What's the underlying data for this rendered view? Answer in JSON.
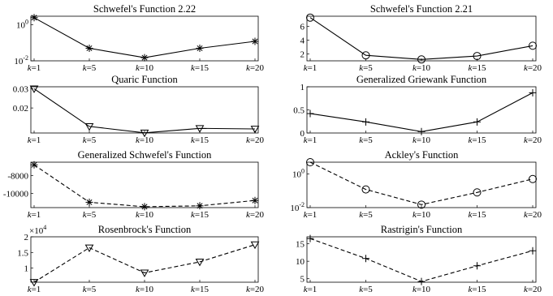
{
  "chart_data": [
    {
      "type": "line",
      "title": "Schwefel's Function 2.22",
      "categories": [
        "k=1",
        "k=5",
        "k=10",
        "k=15",
        "k=20"
      ],
      "values": [
        2.5,
        0.05,
        0.015,
        0.05,
        0.12
      ],
      "yscale": "log",
      "ylim": [
        0.01,
        3
      ],
      "yticks": [
        {
          "value": 1,
          "base": "10",
          "exp": "0"
        },
        {
          "value": 0.01,
          "base": "10",
          "exp": "-2"
        }
      ],
      "marker": "asterisk",
      "linestyle": "solid"
    },
    {
      "type": "line",
      "title": "Schwefel's Function 2.21",
      "categories": [
        "k=1",
        "k=5",
        "k=10",
        "k=15",
        "k=20"
      ],
      "values": [
        7.3,
        1.8,
        1.2,
        1.7,
        3.2
      ],
      "ylim": [
        1,
        7.5
      ],
      "yticks": [
        {
          "value": 2,
          "label": "2"
        },
        {
          "value": 4,
          "label": "4"
        },
        {
          "value": 6,
          "label": "6"
        }
      ],
      "marker": "circle",
      "linestyle": "solid"
    },
    {
      "type": "line",
      "title": "Quaric Function",
      "categories": [
        "k=1",
        "k=5",
        "k=10",
        "k=15",
        "k=20"
      ],
      "values": [
        0.03,
        0.0104,
        0.0071,
        0.0094,
        0.0091
      ],
      "ylim": [
        0.007,
        0.031
      ],
      "yticks": [
        {
          "value": 0.02,
          "label": "0.02"
        },
        {
          "value": 0.03,
          "label": "0.03"
        }
      ],
      "marker": "triangle-down",
      "linestyle": "solid"
    },
    {
      "type": "line",
      "title": "Generalized Griewank Function",
      "categories": [
        "k=1",
        "k=5",
        "k=10",
        "k=15",
        "k=20"
      ],
      "values": [
        0.42,
        0.24,
        0.03,
        0.24,
        0.87
      ],
      "ylim": [
        0,
        1
      ],
      "yticks": [
        {
          "value": 0,
          "label": "0"
        },
        {
          "value": 0.5,
          "label": "0.5"
        },
        {
          "value": 1,
          "label": "1"
        }
      ],
      "marker": "plus",
      "linestyle": "solid"
    },
    {
      "type": "line",
      "title": "Generalized Schwefel's Function",
      "categories": [
        "k=1",
        "k=5",
        "k=10",
        "k=15",
        "k=20"
      ],
      "values": [
        -6800,
        -11000,
        -11500,
        -11400,
        -10800
      ],
      "ylim": [
        -11600,
        -6500
      ],
      "yticks": [
        {
          "value": -8000,
          "label": "-8000"
        },
        {
          "value": -10000,
          "label": "-10000"
        }
      ],
      "marker": "asterisk",
      "linestyle": "dashed"
    },
    {
      "type": "line",
      "title": "Ackley's Function",
      "categories": [
        "k=1",
        "k=5",
        "k=10",
        "k=15",
        "k=20"
      ],
      "values": [
        5,
        0.12,
        0.015,
        0.08,
        0.5
      ],
      "yscale": "log",
      "ylim": [
        0.01,
        5
      ],
      "yticks": [
        {
          "value": 1,
          "base": "10",
          "exp": "0"
        },
        {
          "value": 0.01,
          "base": "10",
          "exp": "-2"
        }
      ],
      "marker": "circle",
      "linestyle": "dashed"
    },
    {
      "type": "line",
      "title": "Rosenbrock's Function",
      "categories": [
        "k=1",
        "k=5",
        "k=10",
        "k=15",
        "k=20"
      ],
      "values": [
        5500,
        16500,
        8500,
        12000,
        17500
      ],
      "ylim": [
        5500,
        20000
      ],
      "yticks": [
        {
          "value": 10000,
          "label": "1"
        },
        {
          "value": 15000,
          "label": "1.5"
        },
        {
          "value": 20000,
          "label": "2"
        }
      ],
      "multiplier": {
        "base": "×10",
        "exp": "4"
      },
      "marker": "triangle-down",
      "linestyle": "dashed"
    },
    {
      "type": "line",
      "title": "Rastrigin's Function",
      "categories": [
        "k=1",
        "k=5",
        "k=10",
        "k=15",
        "k=20"
      ],
      "values": [
        16.5,
        10.8,
        4.2,
        8.7,
        13
      ],
      "ylim": [
        4,
        17
      ],
      "yticks": [
        {
          "value": 5,
          "label": "5"
        },
        {
          "value": 10,
          "label": "10"
        },
        {
          "value": 15,
          "label": "15"
        }
      ],
      "marker": "plus",
      "linestyle": "dashed"
    }
  ]
}
